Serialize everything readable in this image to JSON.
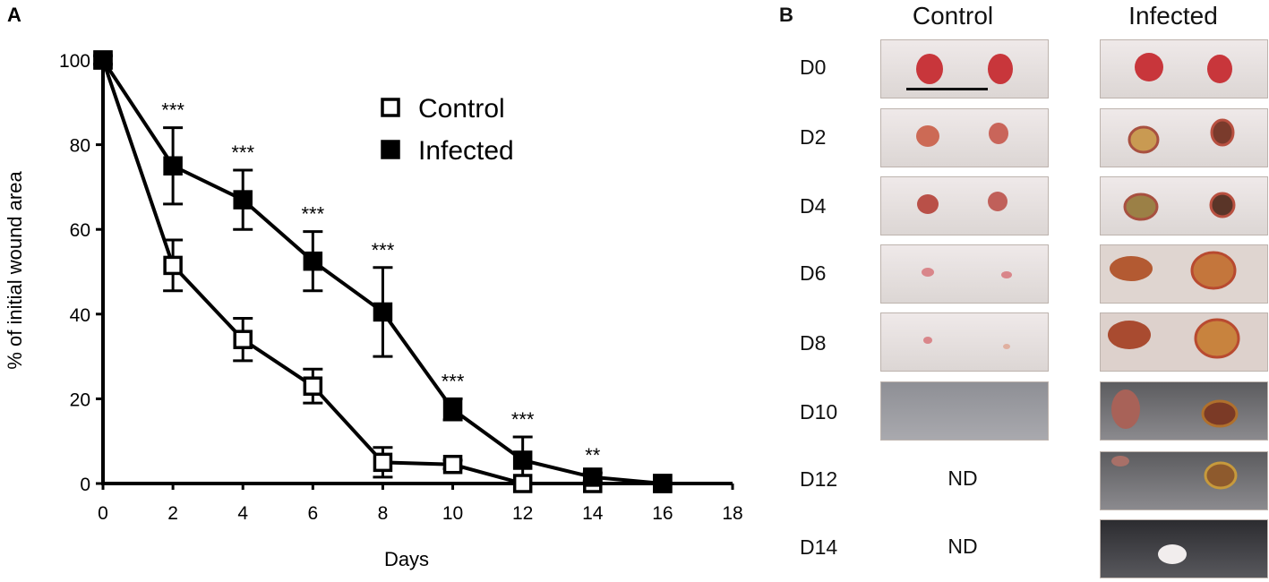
{
  "panel_a": {
    "letter": "A",
    "chart_data": {
      "type": "line",
      "title": "",
      "xlabel": "Days",
      "ylabel": "% of initial wound area",
      "xlim": [
        0,
        18
      ],
      "ylim": [
        0,
        100
      ],
      "xticks": [
        0,
        2,
        4,
        6,
        8,
        10,
        12,
        14,
        16,
        18
      ],
      "yticks": [
        0,
        20,
        40,
        60,
        80,
        100
      ],
      "x": [
        0,
        2,
        4,
        6,
        8,
        10,
        12,
        14,
        16
      ],
      "series": [
        {
          "name": "Control",
          "marker": "open-square",
          "values": [
            100,
            51.5,
            34,
            23,
            5,
            4.5,
            0,
            0,
            0
          ],
          "error": [
            1,
            6,
            5,
            4,
            3.5,
            1,
            0,
            0,
            0
          ]
        },
        {
          "name": "Infected",
          "marker": "filled-square",
          "values": [
            100,
            75,
            67,
            52.5,
            40.5,
            17.5,
            5.5,
            1.5,
            0
          ],
          "error": [
            1,
            9,
            7,
            7,
            10.5,
            2.5,
            5.5,
            1,
            0
          ]
        }
      ],
      "legend": {
        "position": "top-right",
        "entries": [
          "Control",
          "Infected"
        ]
      },
      "annotations": [
        {
          "x": 2,
          "text": "***"
        },
        {
          "x": 4,
          "text": "***"
        },
        {
          "x": 6,
          "text": "***"
        },
        {
          "x": 8,
          "text": "***"
        },
        {
          "x": 10,
          "text": "***"
        },
        {
          "x": 12,
          "text": "***"
        },
        {
          "x": 14,
          "text": "**"
        }
      ]
    }
  },
  "panel_b": {
    "letter": "B",
    "columns": [
      "Control",
      "Infected"
    ],
    "days": [
      "D0",
      "D2",
      "D4",
      "D6",
      "D8",
      "D10",
      "D12",
      "D14"
    ],
    "control_missing": "ND",
    "colors": {
      "skin_light": "#ebe5e5",
      "wound_red": "#c93a3a",
      "scab": "#b0702c"
    }
  }
}
